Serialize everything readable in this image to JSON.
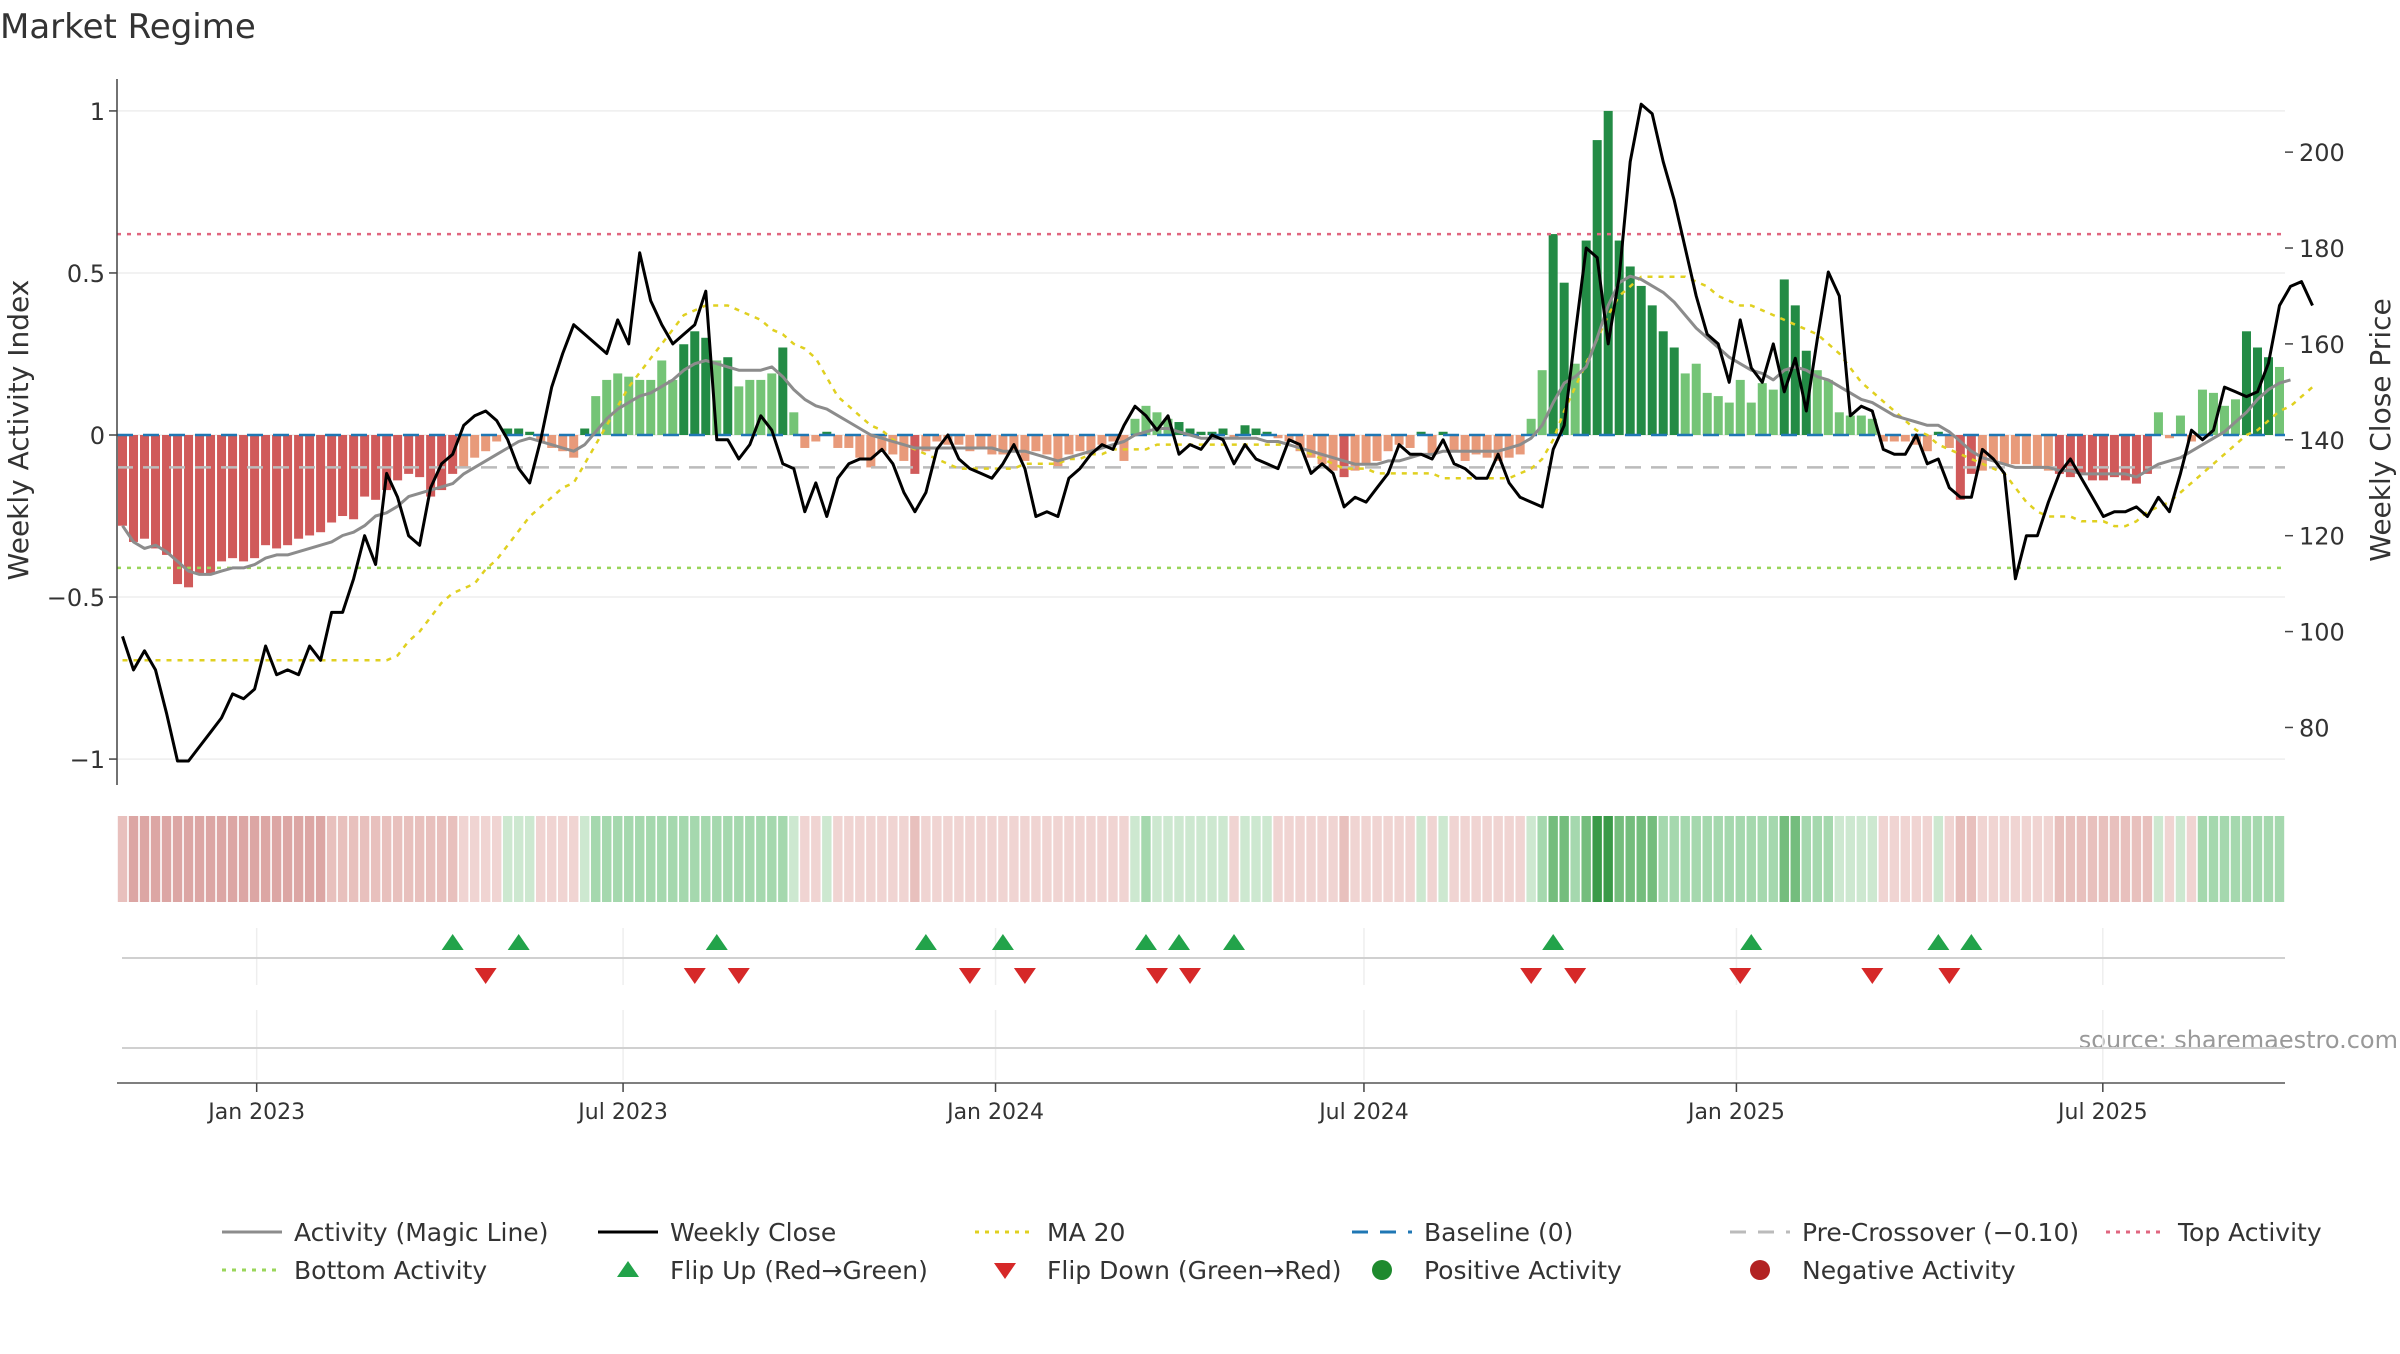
{
  "title": "Market Regime",
  "source": "source: sharemaestro.com",
  "colors": {
    "strong_pos": "#238b45",
    "weak_pos": "#74c476",
    "strong_neg": "#d05a5a",
    "weak_neg": "#e89a7a",
    "magic": "#8c8c8c",
    "close": "#000000",
    "ma": "#e0d020",
    "baseline": "#1f77b4",
    "precross": "#bbbbbb",
    "top": "#e0667f",
    "bottom": "#9ad65a",
    "flip_up": "#22a34a",
    "flip_down": "#d62828"
  },
  "chart_data": {
    "type": "bar",
    "title": "Market Regime",
    "ylabel": "Weekly Activity Index",
    "y2label": "Weekly Close Price",
    "ylim": [
      -1.08,
      1.08
    ],
    "y2lim": [
      68,
      214
    ],
    "yticks": [
      "1",
      "0.5",
      "0",
      "−0.5",
      "−1"
    ],
    "y2ticks": [
      "200",
      "180",
      "160",
      "140",
      "120",
      "100",
      "80"
    ],
    "xticks": [
      "Jan 2023",
      "Jul 2023",
      "Jan 2024",
      "Jul 2024",
      "Jan 2025",
      "Jul 2025"
    ],
    "x_start": "2022-10-24",
    "x_end": "2025-09-29",
    "reference_lines": {
      "baseline": 0,
      "pre_crossover": -0.1,
      "top_activity": 0.62,
      "bottom_activity": -0.41
    },
    "activity": [
      -0.28,
      -0.33,
      -0.32,
      -0.35,
      -0.37,
      -0.46,
      -0.47,
      -0.43,
      -0.43,
      -0.39,
      -0.38,
      -0.39,
      -0.38,
      -0.34,
      -0.35,
      -0.34,
      -0.32,
      -0.31,
      -0.3,
      -0.27,
      -0.25,
      -0.26,
      -0.19,
      -0.2,
      -0.17,
      -0.14,
      -0.12,
      -0.13,
      -0.19,
      -0.17,
      -0.12,
      -0.1,
      -0.07,
      -0.05,
      -0.02,
      0.02,
      0.02,
      0.01,
      -0.02,
      -0.04,
      -0.05,
      -0.07,
      0.02,
      0.12,
      0.17,
      0.19,
      0.18,
      0.17,
      0.17,
      0.23,
      0.17,
      0.28,
      0.32,
      0.3,
      0.23,
      0.24,
      0.15,
      0.17,
      0.17,
      0.19,
      0.27,
      0.07,
      -0.04,
      -0.02,
      0.01,
      -0.04,
      -0.04,
      -0.07,
      -0.1,
      -0.05,
      -0.06,
      -0.08,
      -0.12,
      -0.05,
      -0.02,
      -0.03,
      -0.03,
      -0.05,
      -0.04,
      -0.06,
      -0.06,
      -0.05,
      -0.08,
      -0.05,
      -0.06,
      -0.1,
      -0.06,
      -0.05,
      -0.06,
      -0.03,
      -0.02,
      -0.08,
      0.05,
      0.09,
      0.07,
      0.05,
      0.04,
      0.02,
      0.01,
      0.01,
      0.02,
      -0.01,
      0.03,
      0.02,
      0.01,
      -0.01,
      -0.02,
      -0.05,
      -0.07,
      -0.09,
      -0.11,
      -0.13,
      -0.11,
      -0.09,
      -0.08,
      -0.05,
      -0.03,
      -0.04,
      0.01,
      -0.06,
      0.01,
      -0.05,
      -0.08,
      -0.06,
      -0.07,
      -0.08,
      -0.07,
      -0.06,
      0.05,
      0.2,
      0.62,
      0.47,
      0.22,
      0.6,
      0.91,
      1.0,
      0.6,
      0.52,
      0.46,
      0.4,
      0.32,
      0.27,
      0.19,
      0.22,
      0.13,
      0.12,
      0.1,
      0.17,
      0.1,
      0.16,
      0.14,
      0.48,
      0.4,
      0.26,
      0.2,
      0.17,
      0.07,
      0.06,
      0.06,
      0.05,
      -0.02,
      -0.02,
      -0.02,
      -0.03,
      -0.05,
      0.01,
      -0.04,
      -0.2,
      -0.12,
      -0.11,
      -0.08,
      -0.09,
      -0.09,
      -0.09,
      -0.1,
      -0.11,
      -0.12,
      -0.13,
      -0.12,
      -0.14,
      -0.14,
      -0.13,
      -0.14,
      -0.15,
      -0.12,
      0.07,
      -0.01,
      0.06,
      -0.02,
      0.14,
      0.13,
      0.09,
      0.11,
      0.32,
      0.27,
      0.24,
      0.21
    ],
    "magic_line": [
      -0.28,
      -0.33,
      -0.35,
      -0.34,
      -0.36,
      -0.39,
      -0.42,
      -0.43,
      -0.43,
      -0.42,
      -0.41,
      -0.41,
      -0.4,
      -0.38,
      -0.37,
      -0.37,
      -0.36,
      -0.35,
      -0.34,
      -0.33,
      -0.31,
      -0.3,
      -0.28,
      -0.25,
      -0.24,
      -0.22,
      -0.19,
      -0.18,
      -0.17,
      -0.16,
      -0.15,
      -0.12,
      -0.1,
      -0.08,
      -0.06,
      -0.04,
      -0.02,
      -0.01,
      -0.02,
      -0.03,
      -0.04,
      -0.05,
      -0.03,
      0.01,
      0.05,
      0.08,
      0.1,
      0.12,
      0.13,
      0.15,
      0.17,
      0.2,
      0.22,
      0.23,
      0.22,
      0.21,
      0.2,
      0.2,
      0.2,
      0.21,
      0.18,
      0.14,
      0.11,
      0.09,
      0.08,
      0.06,
      0.04,
      0.02,
      0.0,
      -0.01,
      -0.02,
      -0.03,
      -0.04,
      -0.04,
      -0.04,
      -0.04,
      -0.04,
      -0.04,
      -0.04,
      -0.04,
      -0.05,
      -0.05,
      -0.05,
      -0.06,
      -0.07,
      -0.08,
      -0.07,
      -0.06,
      -0.05,
      -0.04,
      -0.03,
      -0.02,
      0.0,
      0.01,
      0.02,
      0.02,
      0.01,
      0.0,
      -0.01,
      -0.01,
      -0.01,
      -0.01,
      -0.01,
      -0.01,
      -0.02,
      -0.02,
      -0.03,
      -0.04,
      -0.05,
      -0.06,
      -0.07,
      -0.08,
      -0.09,
      -0.09,
      -0.09,
      -0.08,
      -0.08,
      -0.07,
      -0.06,
      -0.06,
      -0.05,
      -0.05,
      -0.05,
      -0.05,
      -0.05,
      -0.05,
      -0.04,
      -0.03,
      -0.01,
      0.03,
      0.1,
      0.16,
      0.18,
      0.21,
      0.3,
      0.4,
      0.47,
      0.49,
      0.48,
      0.46,
      0.44,
      0.41,
      0.37,
      0.33,
      0.3,
      0.27,
      0.24,
      0.22,
      0.2,
      0.19,
      0.17,
      0.2,
      0.21,
      0.2,
      0.18,
      0.17,
      0.15,
      0.13,
      0.11,
      0.1,
      0.08,
      0.06,
      0.05,
      0.04,
      0.03,
      0.03,
      0.01,
      -0.02,
      -0.05,
      -0.07,
      -0.08,
      -0.09,
      -0.1,
      -0.1,
      -0.1,
      -0.1,
      -0.11,
      -0.11,
      -0.12,
      -0.12,
      -0.12,
      -0.12,
      -0.12,
      -0.13,
      -0.11,
      -0.09,
      -0.08,
      -0.07,
      -0.05,
      -0.03,
      -0.01,
      0.01,
      0.04,
      0.07,
      0.11,
      0.14,
      0.16,
      0.17
    ],
    "weekly_close": [
      99,
      92,
      96,
      92,
      83,
      73,
      73,
      76,
      79,
      82,
      87,
      86,
      88,
      97,
      91,
      92,
      91,
      97,
      94,
      104,
      104,
      111,
      120,
      114,
      133,
      128,
      120,
      118,
      130,
      135,
      137,
      143,
      145,
      146,
      144,
      140,
      134,
      131,
      140,
      151,
      158,
      164,
      162,
      160,
      158,
      165,
      160,
      179,
      169,
      164,
      160,
      162,
      164,
      171,
      140,
      140,
      136,
      139,
      145,
      142,
      135,
      134,
      125,
      131,
      124,
      132,
      135,
      136,
      136,
      138,
      135,
      129,
      125,
      129,
      138,
      141,
      136,
      134,
      133,
      132,
      135,
      139,
      134,
      124,
      125,
      124,
      132,
      134,
      137,
      139,
      138,
      143,
      147,
      145,
      142,
      145,
      137,
      139,
      138,
      141,
      140,
      135,
      139,
      136,
      135,
      134,
      140,
      139,
      133,
      135,
      133,
      126,
      128,
      127,
      130,
      133,
      139,
      137,
      137,
      136,
      140,
      135,
      134,
      132,
      132,
      137,
      131,
      128,
      127,
      126,
      138,
      143,
      162,
      180,
      178,
      160,
      174,
      198,
      210,
      208,
      198,
      190,
      180,
      170,
      162,
      160,
      152,
      165,
      155,
      152,
      160,
      150,
      157,
      146,
      161,
      175,
      170,
      145,
      147,
      146,
      138,
      137,
      137,
      141,
      135,
      136,
      130,
      128,
      128,
      138,
      136,
      133,
      111,
      120,
      120,
      127,
      133,
      136,
      132,
      128,
      124,
      125,
      125,
      126,
      124,
      128,
      125,
      133,
      142,
      140,
      142,
      151,
      150,
      149,
      150,
      156,
      168,
      172,
      173,
      168
    ],
    "ma20": [
      94,
      94,
      94,
      94,
      94,
      94,
      94,
      94,
      94,
      94,
      94,
      94,
      94,
      94,
      94,
      94,
      94,
      94,
      94,
      94,
      94,
      94,
      94,
      94,
      94,
      95,
      98,
      100,
      103,
      106,
      108,
      109,
      110,
      113,
      115,
      118,
      121,
      124,
      126,
      128,
      130,
      131,
      135,
      139,
      143,
      147,
      151,
      154,
      157,
      160,
      163,
      166,
      167,
      168,
      168,
      168,
      167,
      166,
      165,
      163,
      162,
      160,
      159,
      157,
      153,
      149,
      147,
      145,
      143,
      142,
      140,
      139,
      138,
      137,
      136,
      135,
      134,
      134,
      134,
      134,
      134,
      134,
      135,
      135,
      135,
      135,
      136,
      136,
      137,
      137,
      138,
      138,
      138,
      138,
      139,
      139,
      139,
      139,
      139,
      139,
      139,
      139,
      139,
      139,
      139,
      139,
      139,
      138,
      137,
      136,
      135,
      134,
      134,
      134,
      133,
      133,
      133,
      133,
      133,
      133,
      132,
      132,
      132,
      132,
      132,
      132,
      132,
      133,
      134,
      136,
      140,
      146,
      151,
      156,
      161,
      166,
      170,
      172,
      174,
      174,
      174,
      174,
      174,
      173,
      172,
      170,
      169,
      168,
      168,
      167,
      166,
      165,
      164,
      163,
      162,
      160,
      158,
      155,
      152,
      150,
      148,
      146,
      144,
      142,
      141,
      139,
      138,
      137,
      136,
      135,
      134,
      133,
      130,
      127,
      125,
      124,
      124,
      124,
      123,
      123,
      123,
      122,
      122,
      123,
      125,
      126,
      127,
      129,
      131,
      133,
      135,
      137,
      139,
      141,
      142,
      144,
      146,
      147,
      149,
      151
    ],
    "flips_up_weeks": [
      30,
      36,
      54,
      73,
      80,
      93,
      96,
      101,
      130,
      148,
      165,
      168
    ],
    "flips_down_weeks": [
      33,
      52,
      56,
      77,
      82,
      94,
      97,
      128,
      132,
      147,
      159,
      166
    ],
    "legend": [
      {
        "label": "Activity (Magic Line)",
        "kind": "line",
        "color": "#8c8c8c",
        "dash": ""
      },
      {
        "label": "Weekly Close",
        "kind": "line",
        "color": "#000000",
        "dash": ""
      },
      {
        "label": "MA 20",
        "kind": "line",
        "color": "#e0d020",
        "dash": "dot"
      },
      {
        "label": "Baseline (0)",
        "kind": "line",
        "color": "#1f77b4",
        "dash": "dash"
      },
      {
        "label": "Pre-Crossover (−0.10)",
        "kind": "line",
        "color": "#bbbbbb",
        "dash": "dash"
      },
      {
        "label": "Top Activity",
        "kind": "line",
        "color": "#e0667f",
        "dash": "dot"
      },
      {
        "label": "Bottom Activity",
        "kind": "line",
        "color": "#9ad65a",
        "dash": "dot"
      },
      {
        "label": "Flip Up (Red→Green)",
        "kind": "tri-up",
        "color": "#22a34a",
        "dash": ""
      },
      {
        "label": "Flip Down (Green→Red)",
        "kind": "tri-down",
        "color": "#d62828",
        "dash": ""
      },
      {
        "label": "Positive Activity",
        "kind": "dot",
        "color": "#1e8a2e",
        "dash": ""
      },
      {
        "label": "Negative Activity",
        "kind": "dot",
        "color": "#b22222",
        "dash": ""
      }
    ]
  }
}
